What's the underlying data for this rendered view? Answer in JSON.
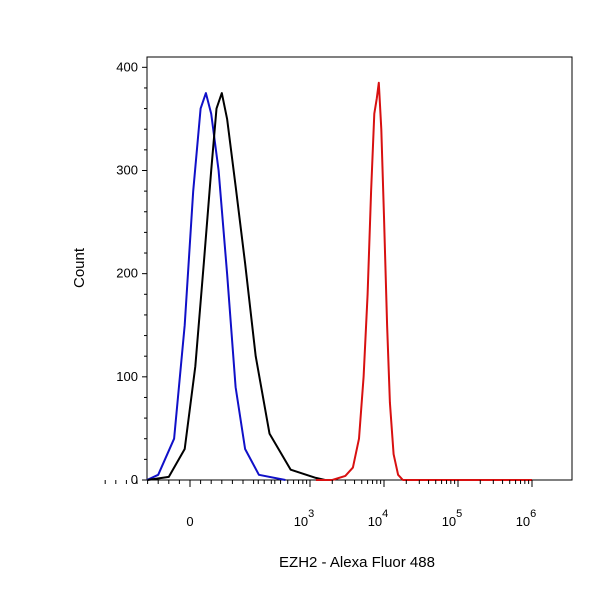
{
  "chart_data": {
    "type": "line",
    "title": "",
    "xlabel": "EZH2 - Alexa Fluor 488",
    "ylabel": "Count",
    "x_scale": "biexponential (linear near 0, log decades above)",
    "ylim": [
      0,
      410
    ],
    "y_ticks": [
      "0",
      "100",
      "200",
      "300",
      "400"
    ],
    "x_ticks": [
      {
        "base": "0",
        "exp": ""
      },
      {
        "base": "10",
        "exp": "3"
      },
      {
        "base": "10",
        "exp": "4"
      },
      {
        "base": "10",
        "exp": "5"
      },
      {
        "base": "10",
        "exp": "6"
      }
    ],
    "grid": false,
    "legend": "none",
    "series": [
      {
        "color": "#1010c8",
        "points": [
          [
            -500,
            0
          ],
          [
            -300,
            5
          ],
          [
            -150,
            40
          ],
          [
            -50,
            150
          ],
          [
            30,
            280
          ],
          [
            100,
            360
          ],
          [
            150,
            375
          ],
          [
            200,
            355
          ],
          [
            270,
            300
          ],
          [
            350,
            200
          ],
          [
            430,
            90
          ],
          [
            520,
            30
          ],
          [
            650,
            5
          ],
          [
            900,
            0
          ]
        ]
      },
      {
        "color": "#000000",
        "points": [
          [
            -400,
            0
          ],
          [
            -200,
            3
          ],
          [
            -50,
            30
          ],
          [
            50,
            110
          ],
          [
            130,
            210
          ],
          [
            200,
            300
          ],
          [
            250,
            360
          ],
          [
            300,
            375
          ],
          [
            350,
            350
          ],
          [
            430,
            285
          ],
          [
            520,
            210
          ],
          [
            620,
            120
          ],
          [
            750,
            45
          ],
          [
            950,
            10
          ],
          [
            1200,
            2
          ],
          [
            1600,
            0
          ]
        ]
      },
      {
        "color": "#d81010",
        "points": [
          [
            1200,
            0
          ],
          [
            2000,
            0
          ],
          [
            3000,
            4
          ],
          [
            3800,
            12
          ],
          [
            4600,
            40
          ],
          [
            5300,
            100
          ],
          [
            6000,
            180
          ],
          [
            6700,
            280
          ],
          [
            7400,
            355
          ],
          [
            8000,
            370
          ],
          [
            8500,
            385
          ],
          [
            9200,
            340
          ],
          [
            10000,
            255
          ],
          [
            11000,
            150
          ],
          [
            12000,
            75
          ],
          [
            13500,
            25
          ],
          [
            15500,
            5
          ],
          [
            18000,
            0
          ],
          [
            1000000,
            0
          ]
        ]
      }
    ]
  }
}
